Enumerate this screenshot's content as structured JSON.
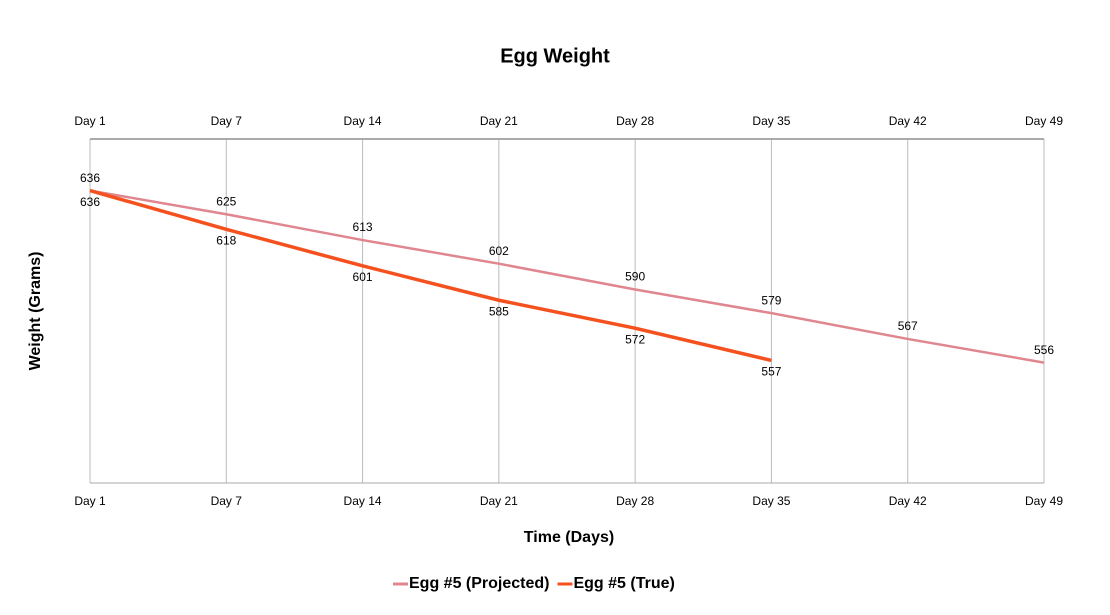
{
  "chart_data": {
    "type": "line",
    "title": "Egg Weight",
    "x_label": "Time (Days)",
    "y_label": "Weight (Grams)",
    "categories": [
      "Day 1",
      "Day 7",
      "Day 14",
      "Day 21",
      "Day 28",
      "Day 35",
      "Day 42",
      "Day 49"
    ],
    "series": [
      {
        "name": "Egg #5 (Projected)",
        "color": "#e0868f",
        "values": [
          636,
          625,
          613,
          602,
          590,
          579,
          567,
          556
        ]
      },
      {
        "name": "Egg #5 (True)",
        "color": "#f4511e",
        "values": [
          636,
          618,
          601,
          585,
          572,
          557,
          null,
          null
        ]
      }
    ],
    "ylim": [
      500,
      660
    ],
    "grid": true,
    "legend": "bottom"
  }
}
